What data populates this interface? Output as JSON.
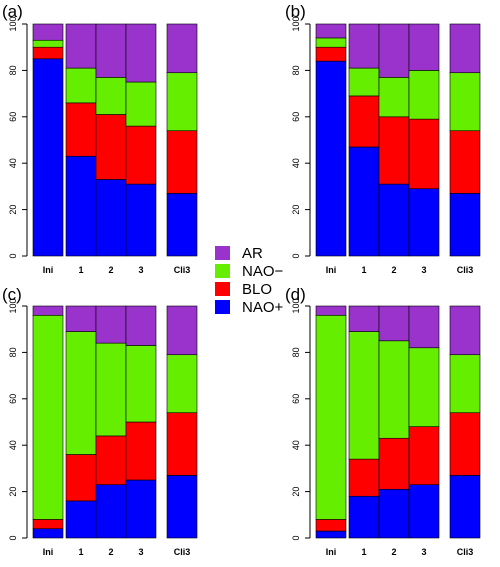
{
  "legend": {
    "items": [
      {
        "label": "AR",
        "color": "#9933cc"
      },
      {
        "label": "NAO−",
        "color": "#66ee00"
      },
      {
        "label": "BLO",
        "color": "#ff0000"
      },
      {
        "label": "NAO+",
        "color": "#0000ff"
      }
    ]
  },
  "chart_data": [
    {
      "type": "bar",
      "stacked": true,
      "panel_label": "(a)",
      "categories": [
        "Ini",
        "1",
        "2",
        "3",
        "Cli3"
      ],
      "yticks": [
        0,
        20,
        40,
        60,
        80,
        100
      ],
      "ylim": [
        0,
        100
      ],
      "series": [
        {
          "name": "NAO+",
          "values": [
            85,
            43,
            33,
            31,
            27
          ]
        },
        {
          "name": "BLO",
          "values": [
            5,
            23,
            28,
            25,
            27
          ]
        },
        {
          "name": "NAO−",
          "values": [
            3,
            15,
            16,
            19,
            25
          ]
        },
        {
          "name": "AR",
          "values": [
            7,
            19,
            23,
            25,
            21
          ]
        }
      ]
    },
    {
      "type": "bar",
      "stacked": true,
      "panel_label": "(b)",
      "categories": [
        "Ini",
        "1",
        "2",
        "3",
        "Cli3"
      ],
      "yticks": [
        0,
        20,
        40,
        60,
        80,
        100
      ],
      "ylim": [
        0,
        100
      ],
      "series": [
        {
          "name": "NAO+",
          "values": [
            84,
            47,
            31,
            29,
            27
          ]
        },
        {
          "name": "BLO",
          "values": [
            6,
            22,
            29,
            30,
            27
          ]
        },
        {
          "name": "NAO−",
          "values": [
            4,
            12,
            17,
            21,
            25
          ]
        },
        {
          "name": "AR",
          "values": [
            6,
            19,
            23,
            20,
            21
          ]
        }
      ]
    },
    {
      "type": "bar",
      "stacked": true,
      "panel_label": "(c)",
      "categories": [
        "Ini",
        "1",
        "2",
        "3",
        "Cli3"
      ],
      "yticks": [
        0,
        20,
        40,
        60,
        80,
        100
      ],
      "ylim": [
        0,
        100
      ],
      "series": [
        {
          "name": "NAO+",
          "values": [
            4,
            16,
            23,
            25,
            27
          ]
        },
        {
          "name": "BLO",
          "values": [
            4,
            20,
            21,
            25,
            27
          ]
        },
        {
          "name": "NAO−",
          "values": [
            88,
            53,
            40,
            33,
            25
          ]
        },
        {
          "name": "AR",
          "values": [
            4,
            11,
            16,
            17,
            21
          ]
        }
      ]
    },
    {
      "type": "bar",
      "stacked": true,
      "panel_label": "(d)",
      "categories": [
        "Ini",
        "1",
        "2",
        "3",
        "Cli3"
      ],
      "yticks": [
        0,
        20,
        40,
        60,
        80,
        100
      ],
      "ylim": [
        0,
        100
      ],
      "series": [
        {
          "name": "NAO+",
          "values": [
            3,
            18,
            21,
            23,
            27
          ]
        },
        {
          "name": "BLO",
          "values": [
            5,
            16,
            22,
            25,
            27
          ]
        },
        {
          "name": "NAO−",
          "values": [
            88,
            55,
            42,
            34,
            25
          ]
        },
        {
          "name": "AR",
          "values": [
            4,
            11,
            15,
            18,
            21
          ]
        }
      ]
    }
  ]
}
